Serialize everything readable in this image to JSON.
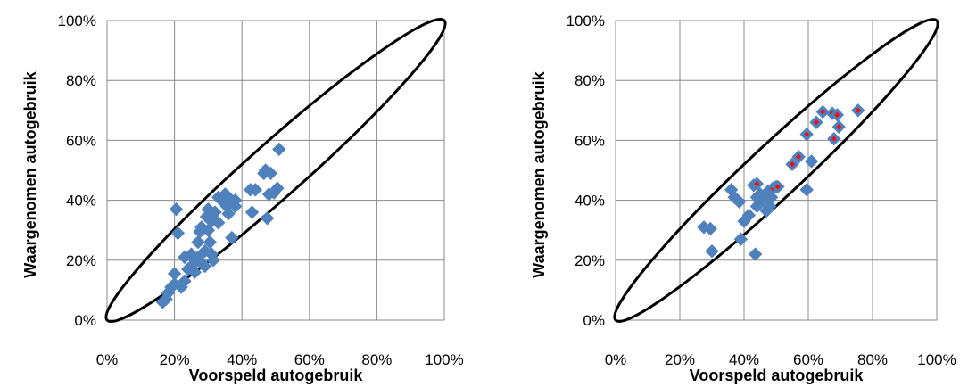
{
  "chart_data": [
    {
      "type": "scatter",
      "xlabel": "Voorspeld autogebruik",
      "ylabel": "Waargenomen autogebruik",
      "xlim": [
        0,
        100
      ],
      "ylim": [
        0,
        100
      ],
      "x_ticks": [
        "0%",
        "20%",
        "40%",
        "60%",
        "80%",
        "100%"
      ],
      "y_ticks": [
        "0%",
        "20%",
        "40%",
        "60%",
        "80%",
        "100%"
      ],
      "grid": true,
      "envelope": true,
      "marker": {
        "shape": "diamond",
        "fill": "#4f81bd",
        "stroke": "#4f81bd"
      },
      "points": [
        [
          16.5,
          6.0
        ],
        [
          17.5,
          7.0
        ],
        [
          18.0,
          9.0
        ],
        [
          19.0,
          11.0
        ],
        [
          20.0,
          12.0
        ],
        [
          20.0,
          15.5
        ],
        [
          20.5,
          37.0
        ],
        [
          21.0,
          29.0
        ],
        [
          22.0,
          11.0
        ],
        [
          23.0,
          13.0
        ],
        [
          23.0,
          21.0
        ],
        [
          24.0,
          17.0
        ],
        [
          25.0,
          18.0
        ],
        [
          25.0,
          22.0
        ],
        [
          26.0,
          16.0
        ],
        [
          26.0,
          20.0
        ],
        [
          27.0,
          21.0
        ],
        [
          27.0,
          26.0
        ],
        [
          27.5,
          29.5
        ],
        [
          28.0,
          19.0
        ],
        [
          28.0,
          31.0
        ],
        [
          29.0,
          23.0
        ],
        [
          29.0,
          18.0
        ],
        [
          29.5,
          34.5
        ],
        [
          30.0,
          37.0
        ],
        [
          30.0,
          30.0
        ],
        [
          30.5,
          26.0
        ],
        [
          31.0,
          22.0
        ],
        [
          31.0,
          33.0
        ],
        [
          31.5,
          20.0
        ],
        [
          32.0,
          36.0
        ],
        [
          33.0,
          32.5
        ],
        [
          33.0,
          41.0
        ],
        [
          34.0,
          40.0
        ],
        [
          35.0,
          42.0
        ],
        [
          35.5,
          38.0
        ],
        [
          36.0,
          41.0
        ],
        [
          36.0,
          35.5
        ],
        [
          37.0,
          27.5
        ],
        [
          37.0,
          39.5
        ],
        [
          38.0,
          38.0
        ],
        [
          38.0,
          40.0
        ],
        [
          42.5,
          43.5
        ],
        [
          43.0,
          36.0
        ],
        [
          44.0,
          43.5
        ],
        [
          46.5,
          49.0
        ],
        [
          47.0,
          50.0
        ],
        [
          47.5,
          34.0
        ],
        [
          48.0,
          42.0
        ],
        [
          48.5,
          49.0
        ],
        [
          49.5,
          42.5
        ],
        [
          50.5,
          44.0
        ],
        [
          51.0,
          57.0
        ]
      ]
    },
    {
      "type": "scatter",
      "xlabel": "Voorspeld autogebruik",
      "ylabel": "Waargenomen autogebruik",
      "xlim": [
        0,
        100
      ],
      "ylim": [
        0,
        100
      ],
      "x_ticks": [
        "0%",
        "20%",
        "40%",
        "60%",
        "80%",
        "100%"
      ],
      "y_ticks": [
        "0%",
        "20%",
        "40%",
        "60%",
        "80%",
        "100%"
      ],
      "grid": true,
      "envelope": true,
      "marker": {
        "shape": "diamond",
        "fill": "#4f81bd",
        "stroke": "#4f81bd"
      },
      "highlight_marker": {
        "shape": "diamond",
        "fill": "#e8121c",
        "stroke": "#4f81bd"
      },
      "points": [
        [
          27.5,
          31.0
        ],
        [
          29.5,
          30.5
        ],
        [
          30.0,
          23.0
        ],
        [
          36.0,
          43.5
        ],
        [
          37.0,
          41.0
        ],
        [
          38.5,
          39.5
        ],
        [
          39.0,
          27.0
        ],
        [
          40.0,
          33.0
        ],
        [
          41.5,
          35.0
        ],
        [
          43.0,
          45.0
        ],
        [
          43.5,
          22.0
        ],
        [
          44.0,
          41.0
        ],
        [
          44.0,
          38.0
        ],
        [
          45.0,
          42.0
        ],
        [
          46.0,
          40.0
        ],
        [
          47.0,
          36.5
        ],
        [
          47.5,
          43.0
        ],
        [
          48.0,
          38.0
        ],
        [
          48.5,
          41.0
        ],
        [
          49.0,
          44.0
        ],
        [
          50.0,
          44.5
        ],
        [
          59.5,
          43.5
        ],
        [
          61.0,
          53.0
        ]
      ],
      "highlight_points": [
        [
          44.0,
          45.5
        ],
        [
          49.0,
          44.0
        ],
        [
          50.5,
          44.5
        ],
        [
          55.0,
          52.0
        ],
        [
          57.0,
          54.5
        ],
        [
          59.5,
          62.0
        ],
        [
          62.5,
          66.0
        ],
        [
          64.5,
          69.5
        ],
        [
          67.5,
          69.0
        ],
        [
          68.0,
          60.5
        ],
        [
          69.0,
          68.5
        ],
        [
          69.5,
          64.5
        ],
        [
          75.5,
          70.0
        ]
      ]
    }
  ]
}
